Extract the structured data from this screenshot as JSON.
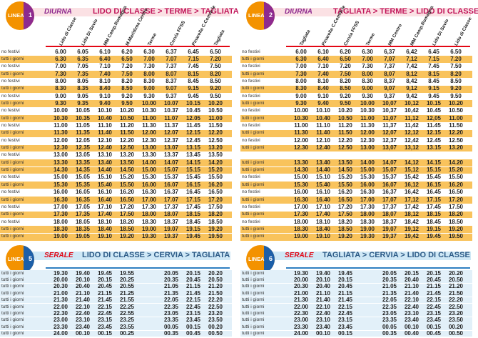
{
  "panels": [
    {
      "line": {
        "name": "LINEA",
        "number": "1"
      },
      "kind": "DIURNA",
      "route": "LIDO DI CLASSE > TERME > TAGLIATA",
      "columns": [
        "Lido di Classe",
        "Lido Di Savio",
        "MM Camp.Romagna",
        "M.Marittima Centro",
        "Terme",
        "Cervia FFSS",
        "Pinarella C.Comm.le",
        "Tagliata"
      ],
      "rows": [
        {
          "day": "no festivi",
          "times": [
            "6.00",
            "6.05",
            "6.10",
            "6.20",
            "6.30",
            "6.37",
            "6.45",
            "6.50"
          ]
        },
        {
          "day": "tutti i giorni",
          "times": [
            "6.30",
            "6.35",
            "6.40",
            "6.50",
            "7.00",
            "7.07",
            "7.15",
            "7.20"
          ]
        },
        {
          "day": "no festivi",
          "times": [
            "7.00",
            "7.05",
            "7.10",
            "7.20",
            "7.30",
            "7.37",
            "7.45",
            "7.50"
          ]
        },
        {
          "day": "tutti i giorni",
          "times": [
            "7.30",
            "7.35",
            "7.40",
            "7.50",
            "8.00",
            "8.07",
            "8.15",
            "8.20"
          ]
        },
        {
          "day": "no festivi",
          "times": [
            "8.00",
            "8.05",
            "8.10",
            "8.20",
            "8.30",
            "8.37",
            "8.45",
            "8.50"
          ]
        },
        {
          "day": "tutti i giorni",
          "times": [
            "8.30",
            "8.35",
            "8.40",
            "8.50",
            "9.00",
            "9.07",
            "9.15",
            "9.20"
          ]
        },
        {
          "day": "no festivi",
          "times": [
            "9.00",
            "9.05",
            "9.10",
            "9.20",
            "9.30",
            "9.37",
            "9.45",
            "9.50"
          ]
        },
        {
          "day": "tutti i giorni",
          "times": [
            "9.30",
            "9.35",
            "9.40",
            "9.50",
            "10.00",
            "10.07",
            "10.15",
            "10.20"
          ]
        },
        {
          "day": "no festivi",
          "times": [
            "10.00",
            "10.05",
            "10.10",
            "10.20",
            "10.30",
            "10.37",
            "10.45",
            "10.50"
          ]
        },
        {
          "day": "tutti i giorni",
          "times": [
            "10.30",
            "10.35",
            "10.40",
            "10.50",
            "11.00",
            "11.07",
            "12.05",
            "11.00"
          ]
        },
        {
          "day": "no festivi",
          "times": [
            "11.00",
            "11.05",
            "11.10",
            "11.20",
            "11.30",
            "11.37",
            "11.45",
            "11.50"
          ]
        },
        {
          "day": "tutti i giorni",
          "times": [
            "11.30",
            "11.35",
            "11.40",
            "11.50",
            "12.00",
            "12.07",
            "12.15",
            "12.20"
          ]
        },
        {
          "day": "no festivi",
          "times": [
            "12.00",
            "12.05",
            "12.10",
            "12.20",
            "12.30",
            "12.37",
            "12.45",
            "12.50"
          ]
        },
        {
          "day": "tutti i giorni",
          "times": [
            "12.30",
            "12.35",
            "12.40",
            "12.50",
            "13.00",
            "13.07",
            "13.15",
            "13.20"
          ]
        },
        {
          "day": "no festivi",
          "times": [
            "13.00",
            "13.05",
            "13.10",
            "13.20",
            "13.30",
            "13.37",
            "13.45",
            "13.50"
          ]
        },
        {
          "day": "tutti i giorni",
          "times": [
            "13.30",
            "13.35",
            "13.40",
            "13.50",
            "14.00",
            "14.07",
            "14.15",
            "14.20"
          ]
        },
        {
          "day": "tutti i giorni",
          "times": [
            "14.30",
            "14.35",
            "14.40",
            "14.50",
            "15.00",
            "15.07",
            "15.15",
            "15.20"
          ]
        },
        {
          "day": "no festivi",
          "times": [
            "15.00",
            "15.05",
            "15.10",
            "15.20",
            "15.30",
            "15.37",
            "15.45",
            "15.50"
          ]
        },
        {
          "day": "tutti i giorni",
          "times": [
            "15.30",
            "15.35",
            "15.40",
            "15.50",
            "16.00",
            "16.07",
            "16.15",
            "16.20"
          ]
        },
        {
          "day": "no festivi",
          "times": [
            "16.00",
            "16.05",
            "16.10",
            "16.20",
            "16.30",
            "16.37",
            "16.45",
            "16.50"
          ]
        },
        {
          "day": "tutti i giorni",
          "times": [
            "16.30",
            "16.35",
            "16.40",
            "16.50",
            "17.00",
            "17.07",
            "17.15",
            "17.20"
          ]
        },
        {
          "day": "no festivi",
          "times": [
            "17.00",
            "17.05",
            "17.10",
            "17.20",
            "17.30",
            "17.37",
            "17.45",
            "17.50"
          ]
        },
        {
          "day": "tutti i giorni",
          "times": [
            "17.30",
            "17.35",
            "17.40",
            "17.50",
            "18.00",
            "18.07",
            "18.15",
            "18.20"
          ]
        },
        {
          "day": "no festivi",
          "times": [
            "18.00",
            "18.05",
            "18.10",
            "18.20",
            "18.30",
            "18.37",
            "18.45",
            "18.50"
          ]
        },
        {
          "day": "tutti i giorni",
          "times": [
            "18.30",
            "18.35",
            "18.40",
            "18.50",
            "19.00",
            "19.07",
            "19.15",
            "19.20"
          ]
        },
        {
          "day": "tutti i giorni",
          "times": [
            "19.00",
            "19.05",
            "19.10",
            "19.20",
            "19.30",
            "19.37",
            "19.45",
            "19.50"
          ]
        }
      ]
    },
    {
      "line": {
        "name": "LINEA",
        "number": "2"
      },
      "kind": "DIURNA",
      "route": "TAGLIATA > TERME > LIDO DI CLASSE",
      "columns": [
        "Tagliata",
        "Pinarella C.Comm.le",
        "Cervia FFSS",
        "Terme",
        "MM Centro",
        "MM Camp.Romagna",
        "Lido Di Savio",
        "Lido di Classe"
      ],
      "rows": [
        {
          "day": "no festivi",
          "times": [
            "6.00",
            "6.10",
            "6.20",
            "6.30",
            "6,37",
            "6,42",
            "6.45",
            "6.50"
          ]
        },
        {
          "day": "tutti i giorni",
          "times": [
            "6.30",
            "6.40",
            "6.50",
            "7.00",
            "7,07",
            "7,12",
            "7.15",
            "7.20"
          ]
        },
        {
          "day": "no festivi",
          "times": [
            "7.00",
            "7.10",
            "7.20",
            "7.30",
            "7,37",
            "7,42",
            "7.45",
            "7.50"
          ]
        },
        {
          "day": "tutti i giorni",
          "times": [
            "7.30",
            "7.40",
            "7.50",
            "8.00",
            "8,07",
            "8,12",
            "8.15",
            "8.20"
          ]
        },
        {
          "day": "no festivi",
          "times": [
            "8.00",
            "8.10",
            "8.20",
            "8.30",
            "8,37",
            "8,42",
            "8.45",
            "8.50"
          ]
        },
        {
          "day": "tutti i giorni",
          "times": [
            "8.30",
            "8.40",
            "8.50",
            "9.00",
            "9,07",
            "9,12",
            "9.15",
            "9.20"
          ]
        },
        {
          "day": "no festivi",
          "times": [
            "9.00",
            "9.10",
            "9.20",
            "9.30",
            "9,37",
            "9,42",
            "9.45",
            "9.50"
          ]
        },
        {
          "day": "tutti i giorni",
          "times": [
            "9.30",
            "9.40",
            "9.50",
            "10.00",
            "10,07",
            "10,12",
            "10.15",
            "10.20"
          ]
        },
        {
          "day": "no festivi",
          "times": [
            "10.00",
            "10.10",
            "10.20",
            "10.30",
            "10,37",
            "10,42",
            "10.45",
            "10.50"
          ]
        },
        {
          "day": "tutti i giorni",
          "times": [
            "10.30",
            "10.40",
            "10.50",
            "11.00",
            "11,07",
            "11,12",
            "12,05",
            "11.00"
          ]
        },
        {
          "day": "no festivi",
          "times": [
            "11.00",
            "11.10",
            "11.20",
            "11.30",
            "11,37",
            "11,42",
            "11.45",
            "11.50"
          ]
        },
        {
          "day": "tutti i giorni",
          "times": [
            "11.30",
            "11.40",
            "11.50",
            "12.00",
            "12,07",
            "12,12",
            "12.15",
            "12.20"
          ]
        },
        {
          "day": "no festivi",
          "times": [
            "12.00",
            "12.10",
            "12.20",
            "12.30",
            "12,37",
            "12,42",
            "12.45",
            "12.50"
          ]
        },
        {
          "day": "tutti i giorni",
          "times": [
            "12.30",
            "12.40",
            "12.50",
            "13.00",
            "13,07",
            "13,12",
            "13.15",
            "13.20"
          ]
        },
        {
          "day": null,
          "times": []
        },
        {
          "day": "tutti i giorni",
          "times": [
            "13.30",
            "13.40",
            "13.50",
            "14.00",
            "14,07",
            "14,12",
            "14.15",
            "14.20"
          ]
        },
        {
          "day": "tutti i giorni",
          "times": [
            "14.30",
            "14.40",
            "14.50",
            "15.00",
            "15,07",
            "15,12",
            "15.15",
            "15.20"
          ]
        },
        {
          "day": "no festivi",
          "times": [
            "15.00",
            "15.10",
            "15.20",
            "15.30",
            "15,37",
            "15,42",
            "15.45",
            "15.50"
          ]
        },
        {
          "day": "tutti i giorni",
          "times": [
            "15.30",
            "15.40",
            "15.50",
            "16.00",
            "16,07",
            "16,12",
            "16.15",
            "16.20"
          ]
        },
        {
          "day": "no festivi",
          "times": [
            "16.00",
            "16.10",
            "16.20",
            "16.30",
            "16,37",
            "16,42",
            "16.45",
            "16.50"
          ]
        },
        {
          "day": "tutti i giorni",
          "times": [
            "16.30",
            "16.40",
            "16.50",
            "17.00",
            "17,07",
            "17,12",
            "17.15",
            "17.20"
          ]
        },
        {
          "day": "no festivi",
          "times": [
            "17.00",
            "17.10",
            "17.20",
            "17.30",
            "17,37",
            "17,42",
            "17.45",
            "17.50"
          ]
        },
        {
          "day": "tutti i giorni",
          "times": [
            "17.30",
            "17.40",
            "17.50",
            "18.00",
            "18,07",
            "18,12",
            "18.15",
            "18.20"
          ]
        },
        {
          "day": "no festivi",
          "times": [
            "18.00",
            "18.10",
            "18.20",
            "18.30",
            "18,37",
            "18,42",
            "18.45",
            "18.50"
          ]
        },
        {
          "day": "tutti i giorni",
          "times": [
            "18.30",
            "18.40",
            "18.50",
            "19.00",
            "19,07",
            "19,12",
            "19.15",
            "19.20"
          ]
        },
        {
          "day": "tutti i giorni",
          "times": [
            "19.00",
            "19.10",
            "19.20",
            "19.30",
            "19,37",
            "19,42",
            "19.45",
            "19.50"
          ]
        }
      ]
    },
    {
      "line": {
        "name": "LINEA",
        "number": "5"
      },
      "kind": "SERALE",
      "route": "LIDO DI CLASSE > CERVIA > TAGLIATA",
      "rows": [
        {
          "day": "tutti i giorni",
          "times": [
            "19.30",
            "19.40",
            "19.45",
            "19.55",
            "20.05",
            "20.15",
            "20.20"
          ]
        },
        {
          "day": "tutti i giorni",
          "times": [
            "20.00",
            "20.10",
            "20.15",
            "20.25",
            "20.35",
            "20.45",
            "20.50"
          ]
        },
        {
          "day": "tutti i giorni",
          "times": [
            "20.30",
            "20.40",
            "20.45",
            "20.55",
            "21.05",
            "21.15",
            "21.20"
          ]
        },
        {
          "day": "tutti i giorni",
          "times": [
            "21.00",
            "21.10",
            "21.15",
            "21.25",
            "21.35",
            "21.45",
            "21.50"
          ]
        },
        {
          "day": "tutti i giorni",
          "times": [
            "21.30",
            "21.40",
            "21.45",
            "21.55",
            "22.05",
            "22.15",
            "22.20"
          ]
        },
        {
          "day": "tutti i giorni",
          "times": [
            "22.00",
            "22.10",
            "22.15",
            "22.25",
            "22.35",
            "22.45",
            "22.50"
          ]
        },
        {
          "day": "tutti i giorni",
          "times": [
            "22.30",
            "22.40",
            "22.45",
            "22.55",
            "23.05",
            "23.15",
            "23.20"
          ]
        },
        {
          "day": "tutti i giorni",
          "times": [
            "23.00",
            "23.10",
            "23.15",
            "23.25",
            "23.35",
            "23.45",
            "23.50"
          ]
        },
        {
          "day": "tutti i giorni",
          "times": [
            "23.30",
            "23.40",
            "23.45",
            "23.55",
            "00.05",
            "00.15",
            "00.20"
          ]
        },
        {
          "day": "tutti i giorni",
          "times": [
            "24.00",
            "00.10",
            "00.15",
            "00.25",
            "00.35",
            "00.45",
            "00.50"
          ]
        }
      ]
    },
    {
      "line": {
        "name": "LINEA",
        "number": "6"
      },
      "kind": "SERALE",
      "route": "TAGLIATA > CERVIA > LIDO DI CLASSE",
      "rows": [
        {
          "day": "tutti i giorni",
          "times": [
            "19.30",
            "19.40",
            "19.45",
            "20.05",
            "20.15",
            "20.15",
            "20.20"
          ]
        },
        {
          "day": "tutti i giorni",
          "times": [
            "20.00",
            "20.10",
            "20.15",
            "20.35",
            "20.40",
            "20.45",
            "20.50"
          ]
        },
        {
          "day": "tutti i giorni",
          "times": [
            "20.30",
            "20.40",
            "20.45",
            "21.05",
            "21.10",
            "21.15",
            "21.20"
          ]
        },
        {
          "day": "tutti i giorni",
          "times": [
            "21.00",
            "21.10",
            "21.15",
            "21.35",
            "21.40",
            "21.45",
            "21.50"
          ]
        },
        {
          "day": "tutti i giorni",
          "times": [
            "21.30",
            "21.40",
            "21.45",
            "22.05",
            "22.10",
            "22.15",
            "22.20"
          ]
        },
        {
          "day": "tutti i giorni",
          "times": [
            "22.00",
            "22.10",
            "22.15",
            "22.35",
            "22.40",
            "22.45",
            "22.50"
          ]
        },
        {
          "day": "tutti i giorni",
          "times": [
            "22.30",
            "22.40",
            "22.45",
            "23.05",
            "23.10",
            "23.15",
            "23.20"
          ]
        },
        {
          "day": "tutti i giorni",
          "times": [
            "23.00",
            "23.10",
            "23.15",
            "23.35",
            "23.40",
            "23.45",
            "23.50"
          ]
        },
        {
          "day": "tutti i giorni",
          "times": [
            "23.30",
            "23.40",
            "23.45",
            "00.05",
            "00.10",
            "00.15",
            "00.20"
          ]
        },
        {
          "day": "tutti i giorni",
          "times": [
            "24.00",
            "00.10",
            "00.15",
            "00.35",
            "00.40",
            "00.45",
            "00.50"
          ]
        }
      ]
    }
  ]
}
